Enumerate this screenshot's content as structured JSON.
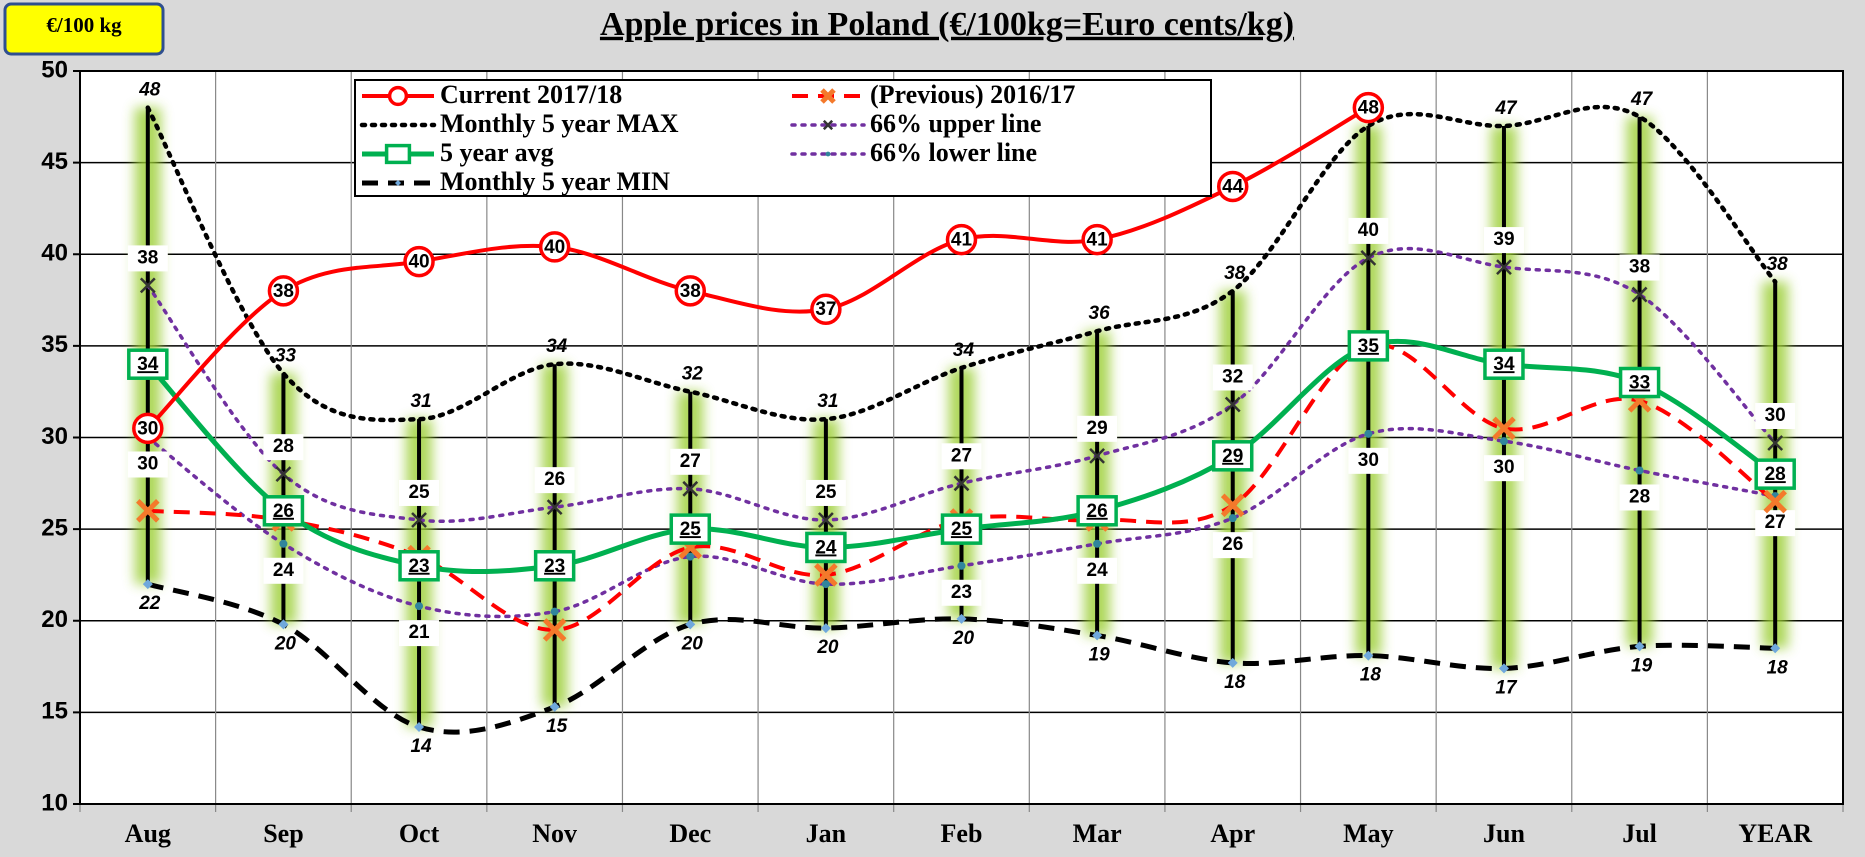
{
  "chart_data": {
    "type": "line",
    "title": "Apple prices in Poland (€/100kg=Euro cents/kg)",
    "unit_badge": "€/100 kg",
    "categories": [
      "Aug",
      "Sep",
      "Oct",
      "Nov",
      "Dec",
      "Jan",
      "Feb",
      "Mar",
      "Apr",
      "May",
      "Jun",
      "Jul",
      "YEAR"
    ],
    "ylim": [
      10,
      50
    ],
    "yticks": [
      10,
      15,
      20,
      25,
      30,
      35,
      40,
      45,
      50
    ],
    "grid": true,
    "range_bars": true,
    "series": [
      {
        "name": "Current 2017/18",
        "color": "#ff0000",
        "line_style": "solid",
        "marker": "circle",
        "values": [
          30.5,
          38,
          39.6,
          40.4,
          38,
          37,
          40.8,
          40.8,
          43.7,
          48,
          null,
          null,
          null
        ],
        "value_labels": [
          "30",
          "38",
          "40",
          "40",
          "38",
          "37",
          "41",
          "41",
          "44",
          "48",
          null,
          null,
          null
        ]
      },
      {
        "name": "(Previous) 2016/17",
        "color": "#ff0000",
        "line_style": "dashed",
        "marker": "x",
        "values": [
          26,
          25.5,
          23.5,
          19.5,
          24,
          22.5,
          25.5,
          25.5,
          26.3,
          35,
          30.5,
          32,
          26.5
        ]
      },
      {
        "name": "Monthly 5 year MAX",
        "color": "#000000",
        "line_style": "dotted",
        "marker": "none",
        "values": [
          48,
          33.5,
          31,
          34,
          32.5,
          31,
          33.8,
          35.8,
          38,
          47,
          47,
          47.5,
          38.5
        ],
        "value_labels": [
          "48",
          "33",
          "31",
          "34",
          "32",
          "31",
          "34",
          "36",
          "38",
          "47",
          "47",
          "47",
          "38"
        ]
      },
      {
        "name": "66% upper line",
        "color": "#7030a0",
        "line_style": "dotted",
        "marker": "x",
        "values": [
          38.3,
          28,
          25.5,
          26.2,
          27.2,
          25.5,
          27.5,
          29,
          31.8,
          39.8,
          39.3,
          37.8,
          29.7
        ],
        "value_labels": [
          "38",
          "28",
          "25",
          "26",
          "27",
          "25",
          "27",
          "29",
          "32",
          "40",
          "39",
          "38",
          "30"
        ]
      },
      {
        "name": "5 year avg",
        "color": "#00b050",
        "line_style": "solid",
        "marker": "square",
        "values": [
          34,
          26,
          23,
          23,
          25,
          24,
          25,
          26,
          29,
          35,
          34,
          33,
          28
        ],
        "value_labels": [
          "34",
          "26",
          "23",
          "23",
          "25",
          "24",
          "25",
          "26",
          "29",
          "35",
          "34",
          "33",
          "28"
        ]
      },
      {
        "name": "66% lower line",
        "color": "#7030a0",
        "line_style": "dotted",
        "marker": "dot",
        "values": [
          30,
          24.2,
          20.8,
          20.5,
          23.5,
          22,
          23,
          24.2,
          25.6,
          30.2,
          29.8,
          28.2,
          26.8
        ],
        "value_labels": [
          "30",
          "24",
          "21",
          null,
          null,
          null,
          "23",
          "24",
          "26",
          "30",
          "30",
          "28",
          "27"
        ]
      },
      {
        "name": "Monthly 5 year MIN",
        "color": "#000000",
        "line_style": "dashed",
        "marker": "diamond",
        "values": [
          22,
          19.8,
          14.2,
          15.3,
          19.8,
          19.6,
          20.1,
          19.2,
          17.7,
          18.1,
          17.4,
          18.6,
          18.5
        ],
        "value_labels": [
          "22",
          "20",
          "14",
          "15",
          "20",
          "20",
          "20",
          "19",
          "18",
          "18",
          "17",
          "19",
          "18"
        ]
      }
    ]
  }
}
